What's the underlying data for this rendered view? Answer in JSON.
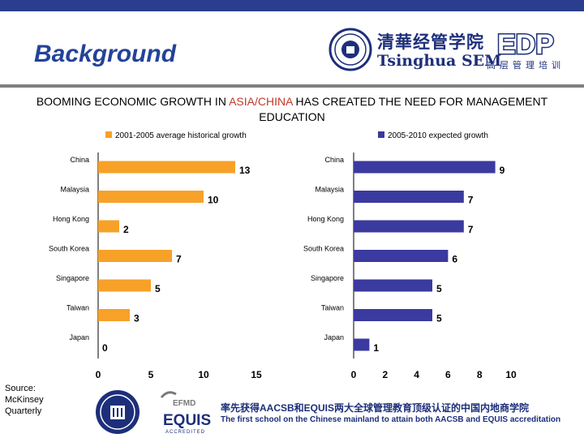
{
  "header": {
    "title": "Background",
    "subtitle_before": "BOOMING ECONOMIC GROWTH IN ",
    "subtitle_highlight": "ASIA/CHINA",
    "subtitle_after": " HAS CREATED THE NEED FOR MANAGEMENT EDUCATION",
    "logo_tsinghua_cn": "清華经管学院",
    "logo_tsinghua_en": "Tsinghua SEM",
    "logo_edp": "EDP",
    "logo_edp_cn": "高层管理培训"
  },
  "chart_data": [
    {
      "type": "bar",
      "orientation": "horizontal",
      "categories": [
        "China",
        "Malaysia",
        "Hong Kong",
        "South Korea",
        "Singapore",
        "Taiwan",
        "Japan"
      ],
      "series": [
        {
          "name": "2001-2005 average historical growth",
          "values": [
            13,
            10,
            2,
            7,
            5,
            3,
            0
          ]
        }
      ],
      "xlim": [
        0,
        15
      ],
      "xticks": [
        "0",
        "5",
        "10",
        "15"
      ],
      "legend_position": "top",
      "color": "#f7a128"
    },
    {
      "type": "bar",
      "orientation": "horizontal",
      "categories": [
        "China",
        "Malaysia",
        "Hong Kong",
        "South Korea",
        "Singapore",
        "Taiwan",
        "Japan"
      ],
      "series": [
        {
          "name": "2005-2010 expected growth",
          "values": [
            9,
            7,
            7,
            6,
            5,
            5,
            1
          ]
        }
      ],
      "xlim": [
        0,
        10
      ],
      "xticks": [
        "0",
        "2",
        "4",
        "6",
        "8",
        "10"
      ],
      "legend_position": "top-right",
      "color": "#3a3aa0"
    }
  ],
  "footer": {
    "source_lines": [
      "Source:",
      "McKinsey",
      "Quarterly"
    ],
    "efmd_label": "EFMD",
    "equis_label": "EQUIS",
    "accredited_label": "ACCREDITED",
    "accreditation_cn": "率先获得AACSB和EQUIS两大全球管理教育顶级认证的中国内地商学院",
    "accreditation_en": "The first school on the Chinese mainland to attain both AACSB and EQUIS accreditation"
  }
}
